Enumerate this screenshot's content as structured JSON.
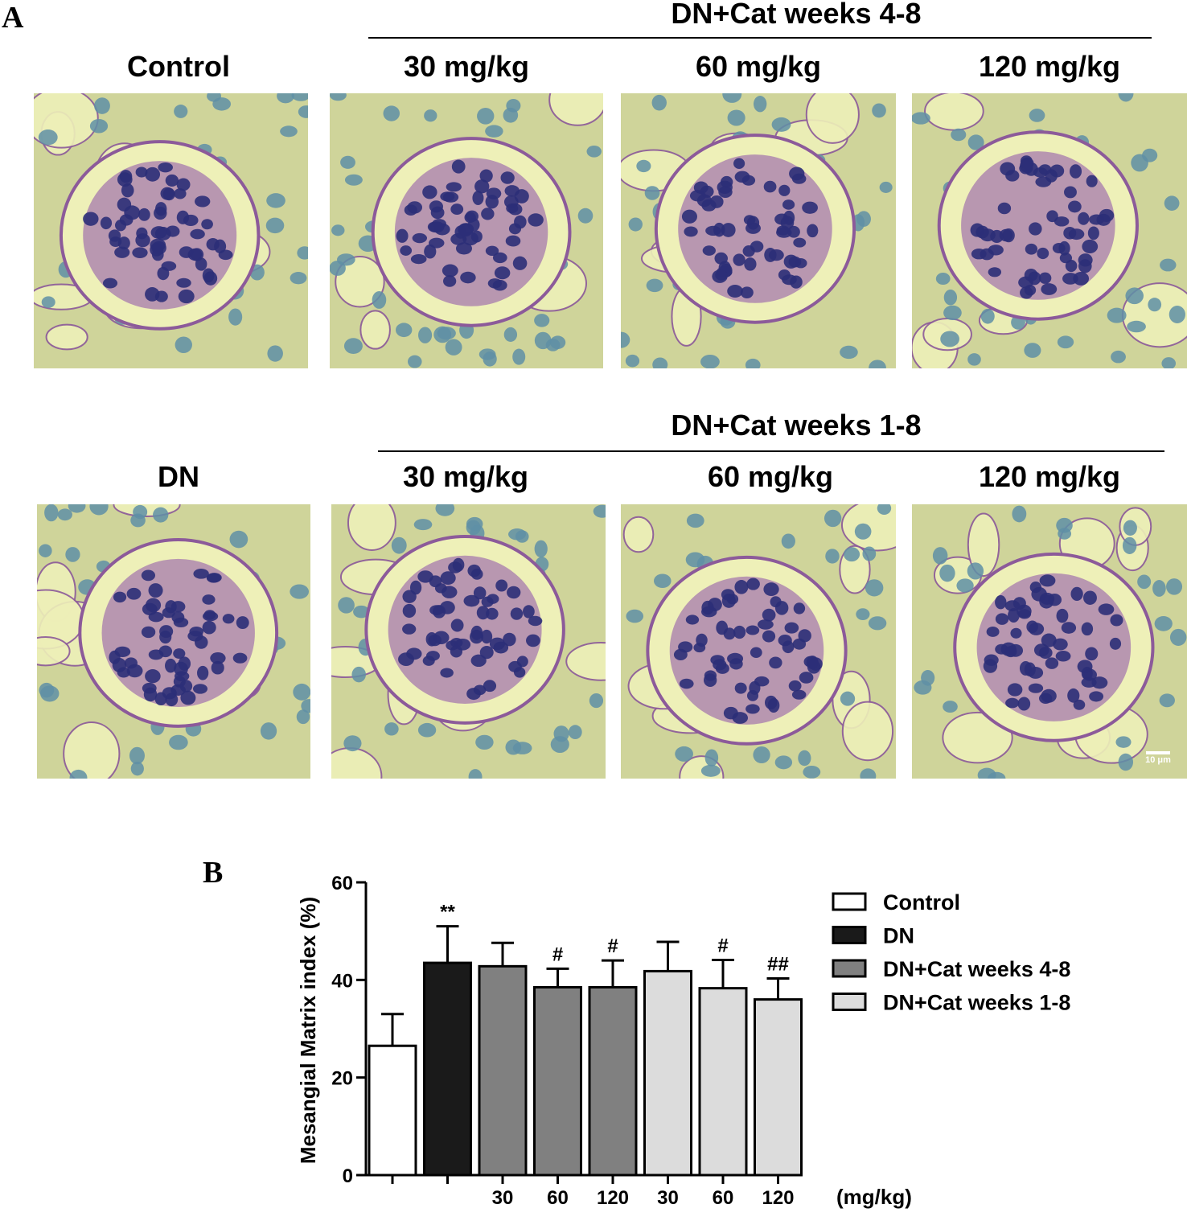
{
  "panel_a": {
    "label": "A",
    "group_headers": [
      "DN+Cat weeks 4-8",
      "DN+Cat weeks 1-8"
    ],
    "row1": [
      "Control",
      "30 mg/kg",
      "60 mg/kg",
      "120 mg/kg"
    ],
    "row2": [
      "DN",
      "30 mg/kg",
      "60 mg/kg",
      "120 mg/kg"
    ],
    "scale_bar": "10 μm",
    "stain_colors": {
      "background": "#cfd49a",
      "lumen": "#eef0b8",
      "nucleus": "#2c2f78",
      "nucleus_light": "#5f8fa6",
      "matrix": "#8c5a9a"
    }
  },
  "chart_data": {
    "type": "bar",
    "panel_label": "B",
    "ylabel": "Mesangial Matrix index (%)",
    "xunit_label": "(mg/kg)",
    "ylim": [
      0,
      60
    ],
    "yticks": [
      0,
      20,
      40,
      60
    ],
    "categories": [
      "",
      "",
      "30",
      "60",
      "120",
      "30",
      "60",
      "120"
    ],
    "values": [
      26.5,
      43.5,
      42.8,
      38.5,
      38.5,
      41.8,
      38.3,
      36.0
    ],
    "errors": [
      6.5,
      7.5,
      4.8,
      3.8,
      5.5,
      6.0,
      5.8,
      4.3
    ],
    "significance": [
      "",
      "**",
      "",
      "#",
      "#",
      "",
      "#",
      "##"
    ],
    "groups": [
      0,
      1,
      2,
      2,
      2,
      3,
      3,
      3
    ],
    "legend": [
      {
        "name": "Control",
        "color": "#ffffff"
      },
      {
        "name": "DN",
        "color": "#1a1a1a"
      },
      {
        "name": "DN+Cat weeks 4-8",
        "color": "#808080"
      },
      {
        "name": "DN+Cat weeks 1-8",
        "color": "#dcdcdc"
      }
    ],
    "legend_position": "right",
    "grid": false
  }
}
